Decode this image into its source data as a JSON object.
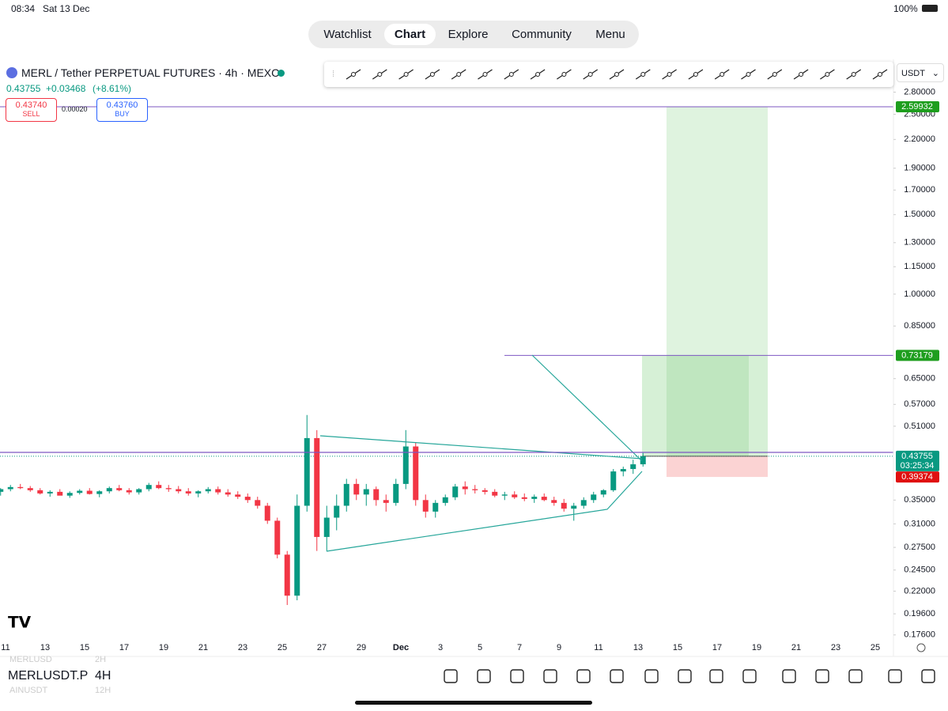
{
  "status_bar": {
    "time": "08:34",
    "date": "Sat 13 Dec",
    "battery": "100%"
  },
  "nav": {
    "tabs": [
      "Watchlist",
      "Chart",
      "Explore",
      "Community",
      "Menu"
    ],
    "active": 1
  },
  "symbol": {
    "title": "MERL / Tether PERPETUAL FUTURES · 4h · MEXC",
    "price": "0.43755",
    "change": "+0.03468",
    "change_pct": "(+8.61%)"
  },
  "order": {
    "sell_price": "0.43740",
    "sell_label": "SELL",
    "spread": "0.00020",
    "buy_price": "0.43760",
    "buy_label": "BUY"
  },
  "currency": "USDT",
  "chart_data": {
    "type": "candlestick",
    "log_scale": true,
    "up_color": "#089981",
    "down_color": "#f23645",
    "ylim": [
      0.159,
      3.31
    ],
    "yticks": [
      {
        "value": 2.8,
        "label": "2.80000"
      },
      {
        "value": 2.5,
        "label": "2.50000"
      },
      {
        "value": 2.2,
        "label": "2.20000"
      },
      {
        "value": 1.9,
        "label": "1.90000"
      },
      {
        "value": 1.7,
        "label": "1.70000"
      },
      {
        "value": 1.5,
        "label": "1.50000"
      },
      {
        "value": 1.3,
        "label": "1.30000"
      },
      {
        "value": 1.15,
        "label": "1.15000"
      },
      {
        "value": 1.0,
        "label": "1.00000"
      },
      {
        "value": 0.85,
        "label": "0.85000"
      },
      {
        "value": 0.65,
        "label": "0.65000"
      },
      {
        "value": 0.57,
        "label": "0.57000"
      },
      {
        "value": 0.51,
        "label": "0.51000"
      },
      {
        "value": 0.35,
        "label": "0.35000"
      },
      {
        "value": 0.31,
        "label": "0.31000"
      },
      {
        "value": 0.275,
        "label": "0.27500"
      },
      {
        "value": 0.245,
        "label": "0.24500"
      },
      {
        "value": 0.22,
        "label": "0.22000"
      },
      {
        "value": 0.196,
        "label": "0.19600"
      },
      {
        "value": 0.176,
        "label": "0.17600"
      }
    ],
    "x_labels": [
      "11",
      "13",
      "15",
      "17",
      "19",
      "21",
      "23",
      "25",
      "27",
      "29",
      "Dec",
      "3",
      "5",
      "7",
      "9",
      "11",
      "13",
      "15",
      "17",
      "19",
      "21",
      "23",
      "25"
    ],
    "open": [
      0.365,
      0.37,
      0.374,
      0.372,
      0.368,
      0.362,
      0.365,
      0.358,
      0.363,
      0.367,
      0.361,
      0.366,
      0.372,
      0.368,
      0.364,
      0.37,
      0.378,
      0.372,
      0.37,
      0.366,
      0.362,
      0.366,
      0.37,
      0.364,
      0.36,
      0.356,
      0.35,
      0.34,
      0.315,
      0.265,
      0.215,
      0.34,
      0.48,
      0.29,
      0.32,
      0.34,
      0.38,
      0.36,
      0.37,
      0.35,
      0.345,
      0.38,
      0.46,
      0.35,
      0.33,
      0.345,
      0.355,
      0.375,
      0.37,
      0.368,
      0.365,
      0.358,
      0.36,
      0.355,
      0.352,
      0.356,
      0.35,
      0.345,
      0.335,
      0.34,
      0.35,
      0.36,
      0.368,
      0.405,
      0.41,
      0.42
    ],
    "high": [
      0.372,
      0.378,
      0.38,
      0.376,
      0.372,
      0.368,
      0.37,
      0.366,
      0.37,
      0.372,
      0.368,
      0.375,
      0.378,
      0.372,
      0.372,
      0.382,
      0.385,
      0.378,
      0.376,
      0.372,
      0.368,
      0.374,
      0.375,
      0.37,
      0.366,
      0.362,
      0.356,
      0.345,
      0.32,
      0.27,
      0.36,
      0.54,
      0.5,
      0.34,
      0.36,
      0.39,
      0.39,
      0.38,
      0.375,
      0.36,
      0.39,
      0.5,
      0.47,
      0.36,
      0.35,
      0.36,
      0.38,
      0.385,
      0.378,
      0.372,
      0.37,
      0.365,
      0.366,
      0.362,
      0.36,
      0.362,
      0.356,
      0.352,
      0.345,
      0.355,
      0.365,
      0.37,
      0.41,
      0.415,
      0.43,
      0.445
    ],
    "low": [
      0.358,
      0.366,
      0.37,
      0.365,
      0.36,
      0.356,
      0.36,
      0.354,
      0.36,
      0.36,
      0.355,
      0.362,
      0.366,
      0.36,
      0.36,
      0.366,
      0.37,
      0.365,
      0.362,
      0.358,
      0.355,
      0.362,
      0.36,
      0.356,
      0.352,
      0.345,
      0.335,
      0.31,
      0.26,
      0.205,
      0.21,
      0.33,
      0.27,
      0.27,
      0.3,
      0.33,
      0.35,
      0.34,
      0.34,
      0.33,
      0.34,
      0.37,
      0.34,
      0.32,
      0.32,
      0.34,
      0.35,
      0.36,
      0.362,
      0.36,
      0.355,
      0.35,
      0.352,
      0.348,
      0.345,
      0.348,
      0.34,
      0.33,
      0.315,
      0.335,
      0.345,
      0.355,
      0.365,
      0.395,
      0.4,
      0.415
    ],
    "close": [
      0.37,
      0.374,
      0.372,
      0.368,
      0.362,
      0.365,
      0.358,
      0.363,
      0.367,
      0.361,
      0.366,
      0.372,
      0.368,
      0.364,
      0.37,
      0.378,
      0.372,
      0.37,
      0.366,
      0.362,
      0.366,
      0.37,
      0.364,
      0.36,
      0.356,
      0.35,
      0.34,
      0.315,
      0.265,
      0.215,
      0.34,
      0.48,
      0.29,
      0.32,
      0.34,
      0.38,
      0.36,
      0.37,
      0.35,
      0.345,
      0.38,
      0.46,
      0.35,
      0.33,
      0.345,
      0.355,
      0.375,
      0.37,
      0.368,
      0.365,
      0.358,
      0.36,
      0.355,
      0.352,
      0.356,
      0.35,
      0.345,
      0.335,
      0.34,
      0.35,
      0.36,
      0.368,
      0.405,
      0.41,
      0.42,
      0.43755
    ],
    "target_price": 2.59932,
    "second_target": 0.73179,
    "last_price": 0.43755,
    "countdown": "03:25:34",
    "stop_price": 0.39374
  },
  "bottom_bar": {
    "symbols": [
      [
        "MERLUSD",
        "2H"
      ],
      [
        "MERLUSDT.P",
        "4H"
      ],
      [
        "AINUSDT",
        "12H"
      ]
    ]
  }
}
